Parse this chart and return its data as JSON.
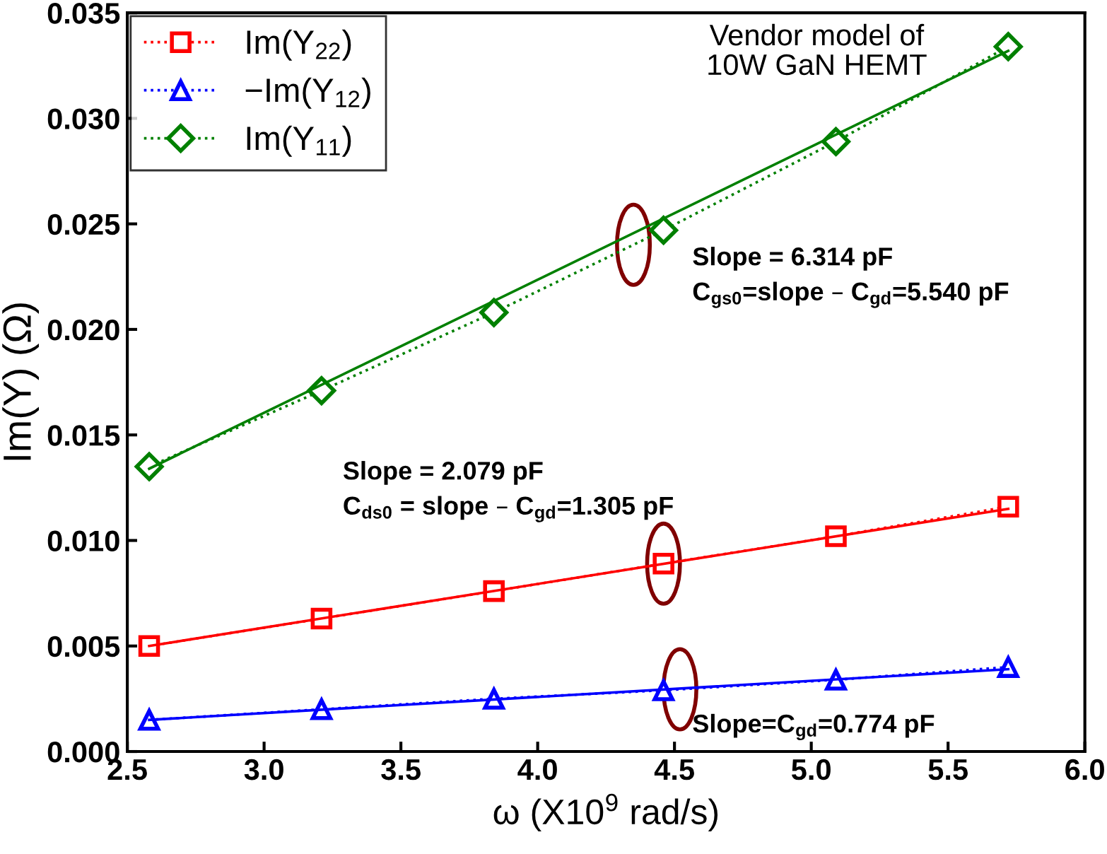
{
  "chart_data": {
    "type": "line",
    "xlabel": "ω (X10$^{9}$ rad/s)",
    "ylabel": "Im(Y) (Ω)",
    "xlim": [
      2.5,
      6.0
    ],
    "xticks": [
      2.5,
      {
        "value": 3.0,
        "label": "3.0"
      },
      3.5,
      {
        "value": 4.0,
        "label": "4.0"
      },
      4.5,
      {
        "value": 5.0,
        "label": "5.0"
      },
      5.5,
      {
        "value": 6.0,
        "label": "6.0"
      }
    ],
    "ylim": [
      0.0,
      0.035
    ],
    "yticks": [
      {
        "value": 0.0,
        "label": "0.000"
      },
      0.005,
      {
        "value": 0.01,
        "label": "0.010"
      },
      0.015,
      {
        "value": 0.02,
        "label": "0.020"
      },
      0.025,
      {
        "value": 0.03,
        "label": "0.030"
      },
      0.035
    ],
    "grid": false,
    "legend": "top left",
    "series": [
      {
        "name": "Im(Y$_{22}$)",
        "color": "#ff0000",
        "marker": "square",
        "line_style": "dotted",
        "x": [
          2.58,
          3.21,
          3.84,
          4.46,
          5.09,
          5.72
        ],
        "values": [
          0.005,
          0.0063,
          0.0076,
          0.0089,
          0.0102,
          0.0116
        ]
      },
      {
        "name": "−Im(Y$_{12}$)",
        "color": "#0000ff",
        "marker": "triangle",
        "line_style": "dotted",
        "x": [
          2.58,
          3.21,
          3.84,
          4.46,
          5.09,
          5.72
        ],
        "values": [
          0.0015,
          0.002,
          0.0025,
          0.0029,
          0.0034,
          0.004
        ]
      },
      {
        "name": "Im(Y$_{11}$)",
        "color": "#008000",
        "marker": "diamond",
        "line_style": "dotted",
        "x": [
          2.58,
          3.21,
          3.84,
          4.46,
          5.09,
          5.72
        ],
        "values": [
          0.0135,
          0.0171,
          0.0208,
          0.0247,
          0.0289,
          0.0334
        ]
      },
      {
        "color": "#ff0000",
        "marker": "none",
        "line_style": "solid",
        "x": [
          2.58,
          5.72
        ],
        "values": [
          0.005,
          0.0115
        ]
      },
      {
        "color": "#0000ff",
        "marker": "none",
        "line_style": "solid",
        "x": [
          2.58,
          5.72
        ],
        "values": [
          0.0015,
          0.0039
        ]
      },
      {
        "color": "#008000",
        "marker": "none",
        "line_style": "solid",
        "x": [
          2.58,
          5.72
        ],
        "values": [
          0.0134,
          0.0332
        ]
      }
    ],
    "annotations": [
      "Vendor model of\n10W GaN HEMT",
      "Slope = 6.314 pF\nC$_{gs0}$=slope – C$_{gd}$=5.540 pF",
      "Slope = 2.079 pF\nC$_{ds0}$ = slope – C$_{gd}$=1.305 pF",
      "Slope=C$_{gd}$=0.774 pF"
    ]
  }
}
